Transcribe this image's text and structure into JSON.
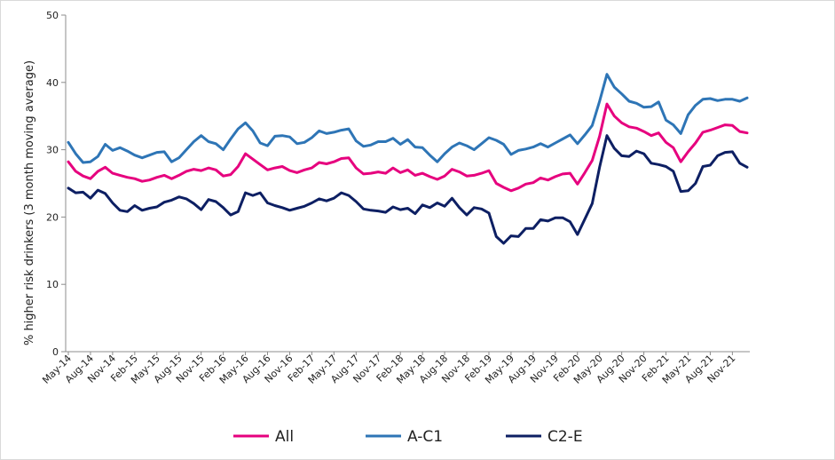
{
  "chart_data": {
    "type": "line",
    "ylabel": "% higher risk drinkers (3 month moving average)",
    "ylim": [
      0,
      50
    ],
    "yticks": [
      0,
      10,
      20,
      30,
      40,
      50
    ],
    "legend_position": "bottom",
    "xtick_labels": [
      "May-14",
      "Aug-14",
      "Nov-14",
      "Feb-15",
      "May-15",
      "Aug-15",
      "Nov-15",
      "Feb-16",
      "May-16",
      "Aug-16",
      "Nov-16",
      "Feb-17",
      "May-17",
      "Aug-17",
      "Nov-17",
      "Feb-18",
      "May-18",
      "Aug-18",
      "Nov-18",
      "Feb-19",
      "May-19",
      "Aug-19",
      "Nov-19",
      "Feb-20",
      "May-20",
      "Aug-20",
      "Nov-20",
      "Feb-21",
      "May-21",
      "Aug-21",
      "Nov-21"
    ],
    "series": [
      {
        "name": "All",
        "color": "#e6007e",
        "values": [
          28.2,
          26.8,
          26.1,
          25.7,
          26.8,
          27.4,
          26.5,
          26.2,
          25.9,
          25.7,
          25.3,
          25.5,
          25.9,
          26.2,
          25.7,
          26.2,
          26.8,
          27.1,
          26.9,
          27.3,
          27.0,
          26.1,
          26.3,
          27.5,
          29.4,
          28.6,
          27.8,
          27.0,
          27.3,
          27.5,
          26.9,
          26.6,
          27.0,
          27.3,
          28.1,
          27.9,
          28.2,
          28.7,
          28.8,
          27.3,
          26.4,
          26.5,
          26.7,
          26.5,
          27.3,
          26.6,
          27.0,
          26.2,
          26.5,
          26.0,
          25.6,
          26.1,
          27.1,
          26.7,
          26.1,
          26.2,
          26.5,
          26.9,
          25.0,
          24.4,
          23.9,
          24.3,
          24.9,
          25.1,
          25.8,
          25.5,
          26.0,
          26.4,
          26.5,
          24.9,
          26.6,
          28.4,
          32.0,
          36.8,
          35.0,
          34.0,
          33.4,
          33.2,
          32.7,
          32.1,
          32.5,
          31.1,
          30.3,
          28.2,
          29.7,
          31.0,
          32.6,
          32.9,
          33.3,
          33.7,
          33.6,
          32.7,
          32.5
        ]
      },
      {
        "name": "A-C1",
        "color": "#2e75b6",
        "values": [
          31.1,
          29.4,
          28.1,
          28.2,
          29.0,
          30.8,
          29.9,
          30.3,
          29.8,
          29.2,
          28.8,
          29.2,
          29.6,
          29.7,
          28.2,
          28.8,
          30.0,
          31.2,
          32.1,
          31.2,
          30.9,
          30.0,
          31.6,
          33.1,
          34.0,
          32.8,
          31.0,
          30.6,
          32.0,
          32.1,
          31.9,
          30.9,
          31.1,
          31.8,
          32.8,
          32.4,
          32.6,
          32.9,
          33.1,
          31.3,
          30.5,
          30.7,
          31.2,
          31.2,
          31.7,
          30.8,
          31.5,
          30.4,
          30.3,
          29.2,
          28.2,
          29.4,
          30.4,
          31.0,
          30.6,
          30.0,
          30.9,
          31.8,
          31.4,
          30.8,
          29.3,
          29.9,
          30.1,
          30.4,
          30.9,
          30.4,
          31.0,
          31.6,
          32.2,
          30.9,
          32.2,
          33.6,
          37.2,
          41.2,
          39.3,
          38.3,
          37.2,
          36.9,
          36.3,
          36.4,
          37.1,
          34.4,
          33.7,
          32.4,
          35.2,
          36.6,
          37.5,
          37.6,
          37.3,
          37.5,
          37.5,
          37.2,
          37.7
        ]
      },
      {
        "name": "C2-E",
        "color": "#0d1f63",
        "values": [
          24.3,
          23.6,
          23.7,
          22.8,
          24.0,
          23.5,
          22.1,
          21.0,
          20.8,
          21.7,
          21.0,
          21.3,
          21.5,
          22.2,
          22.5,
          23.0,
          22.7,
          22.0,
          21.1,
          22.6,
          22.3,
          21.4,
          20.3,
          20.8,
          23.6,
          23.2,
          23.6,
          22.1,
          21.7,
          21.4,
          21.0,
          21.3,
          21.6,
          22.1,
          22.7,
          22.4,
          22.8,
          23.6,
          23.2,
          22.3,
          21.2,
          21.0,
          20.9,
          20.7,
          21.5,
          21.1,
          21.3,
          20.5,
          21.8,
          21.4,
          22.1,
          21.6,
          22.8,
          21.4,
          20.3,
          21.4,
          21.2,
          20.6,
          17.1,
          16.1,
          17.2,
          17.1,
          18.3,
          18.3,
          19.6,
          19.4,
          19.9,
          19.9,
          19.3,
          17.4,
          19.7,
          22.0,
          27.4,
          32.1,
          30.2,
          29.1,
          29.0,
          29.8,
          29.4,
          28.0,
          27.8,
          27.5,
          26.8,
          23.8,
          23.9,
          25.0,
          27.5,
          27.7,
          29.1,
          29.6,
          29.7,
          28.0,
          27.4
        ]
      }
    ]
  }
}
